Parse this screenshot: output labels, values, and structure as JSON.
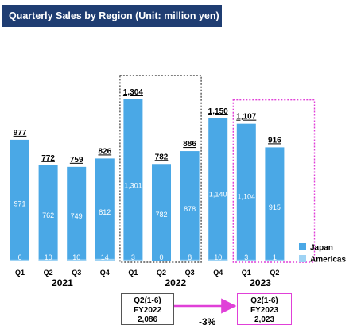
{
  "title": "Quarterly Sales by Region (Unit: million yen)",
  "colors": {
    "japan": "#4aa8e6",
    "americas": "#9fd3f4",
    "banner": "#1f3d72",
    "highlight": "#e040d8",
    "frame": "#555555"
  },
  "chart_data": {
    "type": "bar",
    "stacked": true,
    "categories": [
      "Q1",
      "Q2",
      "Q3",
      "Q4",
      "Q1",
      "Q2",
      "Q3",
      "Q4",
      "Q1",
      "Q2"
    ],
    "years": [
      {
        "label": "2021",
        "quarters": 4
      },
      {
        "label": "2022",
        "quarters": 4
      },
      {
        "label": "2023",
        "quarters": 2
      }
    ],
    "totals": [
      "977",
      "772",
      "759",
      "826",
      "1,304",
      "782",
      "886",
      "1,150",
      "1,107",
      "916"
    ],
    "series": [
      {
        "name": "Japan",
        "values": [
          971,
          762,
          749,
          812,
          1301,
          782,
          878,
          1140,
          1104,
          915
        ],
        "labels": [
          "971",
          "762",
          "749",
          "812",
          "1,301",
          "782",
          "878",
          "1,140",
          "1,104",
          "915"
        ]
      },
      {
        "name": "Americas",
        "values": [
          6,
          10,
          10,
          14,
          3,
          0,
          8,
          10,
          3,
          1
        ],
        "labels": [
          "6",
          "10",
          "10",
          "14",
          "3",
          "0",
          "8",
          "10",
          "3",
          "1"
        ]
      }
    ],
    "legend_position": "right",
    "ylim": [
      0,
      1400
    ]
  },
  "comparison": {
    "left": {
      "line1": "Q2(1-6)",
      "line2": "FY2022",
      "line3": "2,086"
    },
    "right": {
      "line1": "Q2(1-6)",
      "line2": "FY2023",
      "line3": "2,023"
    },
    "change": "-3%"
  }
}
